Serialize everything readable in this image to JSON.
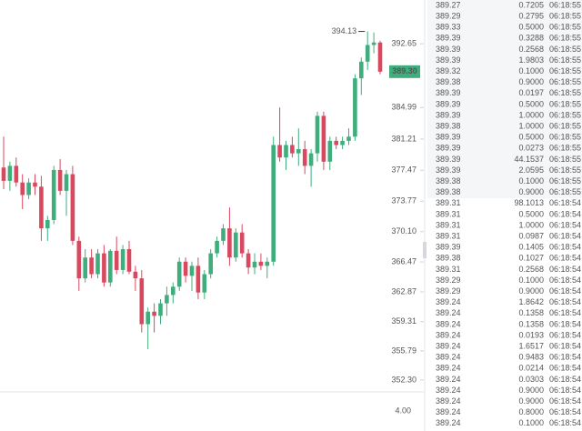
{
  "chart_data": {
    "type": "candlestick",
    "open": [
      377.8,
      376.2,
      378.0,
      376.0,
      374.5,
      376.0,
      375.5,
      370.5,
      371.5,
      377.5,
      375.0,
      377.0,
      369.0,
      364.5,
      367.0,
      365.0,
      367.5,
      364.0,
      367.8,
      365.5,
      368.0,
      365.3,
      364.5,
      359.0,
      360.5,
      360.0,
      361.5,
      362.5,
      363.5,
      366.5,
      364.8,
      366.0,
      362.8,
      365.0,
      367.5,
      369.0,
      370.5,
      367.0,
      370.0,
      367.5,
      365.8,
      366.5,
      366.0,
      366.5,
      380.5,
      379.0,
      380.5,
      379.5,
      380.0,
      378.0,
      379.5,
      384.0,
      378.5,
      381.0,
      380.5,
      381.0,
      381.5,
      388.5,
      390.5,
      392.5,
      392.8
    ],
    "high": [
      381.5,
      378.5,
      379.0,
      377.0,
      376.5,
      377.0,
      376.8,
      372.0,
      378.0,
      378.8,
      377.5,
      378.0,
      369.5,
      368.0,
      368.0,
      368.0,
      368.5,
      368.0,
      369.5,
      368.5,
      369.0,
      366.0,
      365.5,
      361.0,
      361.5,
      362.0,
      363.5,
      364.0,
      367.0,
      367.0,
      366.5,
      367.0,
      365.5,
      368.0,
      369.5,
      371.0,
      373.0,
      370.5,
      371.0,
      368.0,
      367.5,
      367.5,
      367.0,
      381.5,
      385.0,
      381.0,
      381.5,
      382.5,
      381.0,
      380.0,
      384.5,
      384.5,
      381.5,
      381.5,
      381.5,
      382.5,
      389.0,
      391.0,
      394.13,
      394.0,
      393.0
    ],
    "low": [
      375.2,
      375.0,
      375.5,
      372.8,
      374.0,
      374.5,
      369.0,
      369.0,
      371.0,
      374.5,
      372.0,
      368.5,
      363.0,
      364.0,
      364.5,
      364.5,
      363.5,
      363.5,
      365.0,
      365.0,
      365.0,
      363.0,
      358.0,
      356.0,
      358.0,
      359.0,
      360.0,
      361.5,
      363.0,
      364.0,
      363.0,
      362.0,
      362.0,
      364.5,
      367.0,
      368.5,
      366.0,
      366.5,
      367.0,
      365.0,
      365.0,
      365.5,
      364.5,
      366.0,
      378.5,
      377.5,
      379.0,
      378.0,
      377.0,
      375.5,
      378.5,
      377.5,
      377.5,
      380.0,
      380.0,
      380.5,
      381.0,
      386.5,
      389.5,
      391.5,
      389.0
    ],
    "close": [
      376.2,
      378.0,
      376.0,
      374.5,
      376.0,
      375.5,
      370.5,
      371.5,
      377.5,
      375.0,
      377.0,
      369.0,
      364.5,
      367.0,
      365.0,
      367.5,
      364.0,
      367.8,
      365.5,
      368.0,
      365.3,
      364.5,
      359.0,
      360.5,
      360.0,
      361.5,
      362.5,
      363.5,
      366.5,
      364.8,
      366.0,
      362.8,
      365.0,
      367.5,
      369.0,
      370.5,
      367.0,
      370.0,
      367.5,
      365.8,
      366.5,
      366.0,
      366.5,
      380.5,
      379.0,
      380.5,
      379.5,
      380.0,
      378.0,
      379.5,
      384.0,
      378.5,
      381.0,
      380.5,
      381.0,
      381.5,
      388.5,
      390.5,
      392.5,
      392.8,
      389.3
    ],
    "up_color": "#3fae7c",
    "down_color": "#d8485f",
    "ylim": [
      351.2,
      397.9
    ],
    "yticks": [
      392.65,
      384.99,
      381.21,
      377.47,
      373.77,
      {
        "value": 370.1,
        "label": "370.10"
      },
      366.47,
      362.87,
      359.31,
      355.79,
      {
        "value": 352.3,
        "label": "352.30"
      }
    ],
    "max_label": 394.13,
    "last_price": {
      "value": 389.3,
      "label": "389.30"
    },
    "volume_yticks": [
      {
        "value": 4,
        "label": "4.00"
      }
    ]
  },
  "trades": [
    {
      "price": "389.27",
      "qty": "0.7205",
      "time": "06:18:55",
      "color": "#3fae7c"
    },
    {
      "price": "389.29",
      "qty": "0.2795",
      "time": "06:18:55",
      "color": "#3fae7c"
    },
    {
      "price": "389.33",
      "qty": "0.5000",
      "time": "06:18:55",
      "color": "#d8485f"
    },
    {
      "price": "389.39",
      "qty": "0.3288",
      "time": "06:18:55",
      "color": "#d8485f"
    },
    {
      "price": "389.39",
      "qty": "0.2568",
      "time": "06:18:55",
      "color": "#eba3ae"
    },
    {
      "price": "389.39",
      "qty": "1.9803",
      "time": "06:18:55",
      "color": "#eba3ae"
    },
    {
      "price": "389.32",
      "qty": "0.1000",
      "time": "06:18:55",
      "color": "#3fae7c"
    },
    {
      "price": "389.38",
      "qty": "0.9000",
      "time": "06:18:55",
      "color": "#3fae7c"
    },
    {
      "price": "389.39",
      "qty": "0.0197",
      "time": "06:18:55",
      "color": "#d8485f"
    },
    {
      "price": "389.39",
      "qty": "0.5000",
      "time": "06:18:55",
      "color": "#eba3ae"
    },
    {
      "price": "389.39",
      "qty": "1.0000",
      "time": "06:18:55",
      "color": "#eba3ae"
    },
    {
      "price": "389.38",
      "qty": "1.0000",
      "time": "06:18:55",
      "color": "#3fae7c"
    },
    {
      "price": "389.39",
      "qty": "0.5000",
      "time": "06:18:55",
      "color": "#d8485f"
    },
    {
      "price": "389.39",
      "qty": "0.0273",
      "time": "06:18:55",
      "color": "#eba3ae"
    },
    {
      "price": "389.39",
      "qty": "44.1537",
      "time": "06:18:55",
      "color": "#eba3ae"
    },
    {
      "price": "389.39",
      "qty": "2.0595",
      "time": "06:18:55",
      "color": "#eba3ae"
    },
    {
      "price": "389.38",
      "qty": "0.1000",
      "time": "06:18:55",
      "color": "#3fae7c"
    },
    {
      "price": "389.38",
      "qty": "0.9000",
      "time": "06:18:55",
      "color": "#a3d8c0"
    },
    {
      "price": "389.31",
      "qty": "98.1013",
      "time": "06:18:54",
      "color": "#d8485f"
    },
    {
      "price": "389.31",
      "qty": "0.5000",
      "time": "06:18:54",
      "color": "#eba3ae"
    },
    {
      "price": "389.31",
      "qty": "1.0000",
      "time": "06:18:54",
      "color": "#eba3ae"
    },
    {
      "price": "389.31",
      "qty": "0.0987",
      "time": "06:18:54",
      "color": "#d8485f"
    },
    {
      "price": "389.39",
      "qty": "0.1405",
      "time": "06:18:54",
      "color": "#d8485f"
    },
    {
      "price": "389.38",
      "qty": "0.1027",
      "time": "06:18:54",
      "color": "#d8485f"
    },
    {
      "price": "389.31",
      "qty": "0.2568",
      "time": "06:18:54",
      "color": "#d8485f"
    },
    {
      "price": "389.29",
      "qty": "0.1000",
      "time": "06:18:54",
      "color": "#3fae7c"
    },
    {
      "price": "389.29",
      "qty": "0.9000",
      "time": "06:18:54",
      "color": "#a3d8c0"
    },
    {
      "price": "389.24",
      "qty": "1.8642",
      "time": "06:18:54",
      "color": "#d8485f"
    },
    {
      "price": "389.24",
      "qty": "0.1358",
      "time": "06:18:54",
      "color": "#eba3ae"
    },
    {
      "price": "389.24",
      "qty": "0.1358",
      "time": "06:18:54",
      "color": "#eba3ae"
    },
    {
      "price": "389.24",
      "qty": "0.0193",
      "time": "06:18:54",
      "color": "#eba3ae"
    },
    {
      "price": "389.24",
      "qty": "1.6517",
      "time": "06:18:54",
      "color": "#eba3ae"
    },
    {
      "price": "389.24",
      "qty": "0.9483",
      "time": "06:18:54",
      "color": "#eba3ae"
    },
    {
      "price": "389.24",
      "qty": "0.0214",
      "time": "06:18:54",
      "color": "#eba3ae"
    },
    {
      "price": "389.24",
      "qty": "0.0303",
      "time": "06:18:54",
      "color": "#eba3ae"
    },
    {
      "price": "389.24",
      "qty": "0.9000",
      "time": "06:18:54",
      "color": "#eba3ae"
    },
    {
      "price": "389.24",
      "qty": "0.9000",
      "time": "06:18:54",
      "color": "#eba3ae"
    },
    {
      "price": "389.24",
      "qty": "0.8000",
      "time": "06:18:54",
      "color": "#eba3ae"
    },
    {
      "price": "389.24",
      "qty": "0.1000",
      "time": "06:18:54",
      "color": "#eba3ae"
    }
  ]
}
